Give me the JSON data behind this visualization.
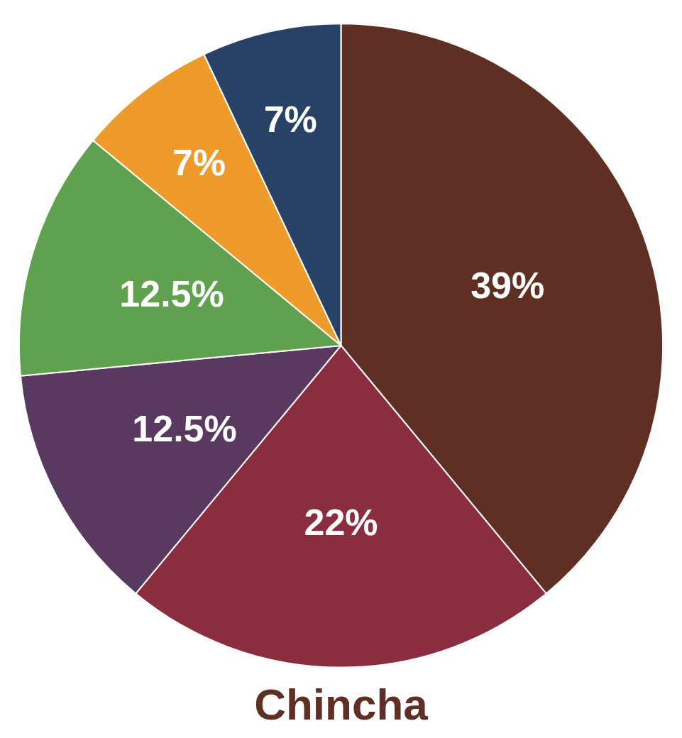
{
  "chart_data": {
    "type": "pie",
    "title": "Chincha",
    "categories": [
      null,
      null,
      null,
      null,
      null,
      null
    ],
    "values": [
      39,
      22,
      12.5,
      12.5,
      7,
      7
    ],
    "colors": [
      "#5e2f22",
      "#8a2e3f",
      "#5a3960",
      "#60a150",
      "#ee9b2b",
      "#274265"
    ],
    "value_labels": [
      "39%",
      "22%",
      "12.5%",
      "12.5%",
      "7%",
      "7%"
    ]
  }
}
